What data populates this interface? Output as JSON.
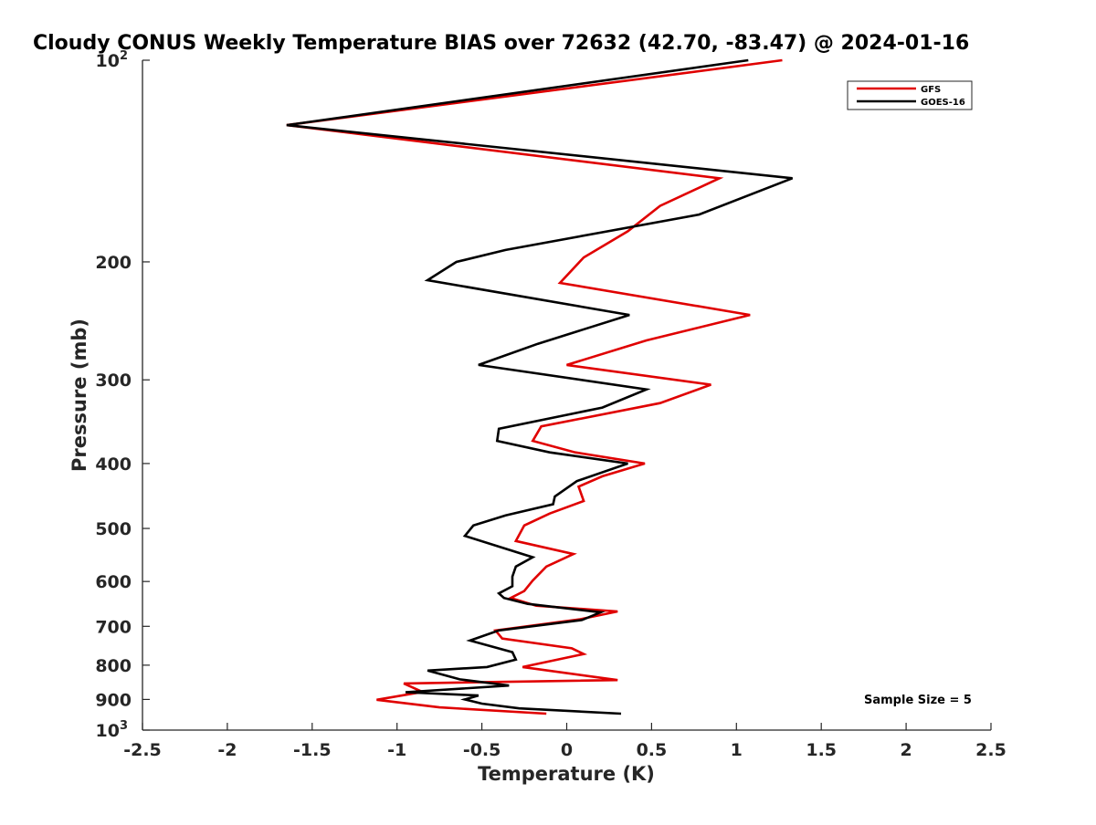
{
  "chart_data": {
    "type": "line",
    "title": "Cloudy CONUS Weekly Temperature BIAS over 72632 (42.70, -83.47) @ 2024-01-16",
    "xlabel": "Temperature (K)",
    "ylabel": "Pressure (mb)",
    "xlim": [
      -2.5,
      2.5
    ],
    "ylim": [
      1000,
      100
    ],
    "y_scale": "log",
    "x_ticks": [
      "-2.5",
      "-2",
      "-1.5",
      "-1",
      "-0.5",
      "0",
      "0.5",
      "1",
      "1.5",
      "2",
      "2.5"
    ],
    "y_ticks": [
      {
        "value": 100,
        "label": "10",
        "sup": "2"
      },
      {
        "value": 200,
        "label": "200",
        "sup": ""
      },
      {
        "value": 300,
        "label": "300",
        "sup": ""
      },
      {
        "value": 400,
        "label": "400",
        "sup": ""
      },
      {
        "value": 500,
        "label": "500",
        "sup": ""
      },
      {
        "value": 600,
        "label": "600",
        "sup": ""
      },
      {
        "value": 700,
        "label": "700",
        "sup": ""
      },
      {
        "value": 800,
        "label": "800",
        "sup": ""
      },
      {
        "value": 900,
        "label": "900",
        "sup": ""
      },
      {
        "value": 1000,
        "label": "10",
        "sup": "3"
      }
    ],
    "grid": false,
    "legend": "top-right",
    "annotation": "Sample Size = 5",
    "series": [
      {
        "name": "GFS",
        "color": "#e00000",
        "points": [
          [
            1.27,
            100
          ],
          [
            -1.65,
            125
          ],
          [
            0.9,
            150
          ],
          [
            0.55,
            165
          ],
          [
            0.36,
            180
          ],
          [
            0.1,
            197
          ],
          [
            -0.04,
            215
          ],
          [
            1.08,
            240
          ],
          [
            0.47,
            262
          ],
          [
            0.0,
            285
          ],
          [
            0.85,
            305
          ],
          [
            0.55,
            325
          ],
          [
            -0.15,
            352
          ],
          [
            -0.2,
            370
          ],
          [
            0.05,
            385
          ],
          [
            0.46,
            400
          ],
          [
            0.21,
            418
          ],
          [
            0.07,
            433
          ],
          [
            0.1,
            455
          ],
          [
            -0.1,
            475
          ],
          [
            -0.25,
            495
          ],
          [
            -0.3,
            522
          ],
          [
            0.04,
            546
          ],
          [
            -0.12,
            570
          ],
          [
            -0.2,
            598
          ],
          [
            -0.25,
            620
          ],
          [
            -0.33,
            635
          ],
          [
            -0.18,
            652
          ],
          [
            0.3,
            665
          ],
          [
            0.08,
            683
          ],
          [
            -0.42,
            710
          ],
          [
            -0.38,
            730
          ],
          [
            0.03,
            755
          ],
          [
            0.1,
            770
          ],
          [
            -0.26,
            805
          ],
          [
            0.3,
            842
          ],
          [
            -0.96,
            852
          ],
          [
            -0.85,
            877
          ],
          [
            -1.12,
            901
          ],
          [
            -0.75,
            925
          ],
          [
            -0.12,
            945
          ]
        ]
      },
      {
        "name": "GOES-16",
        "color": "#000000",
        "points": [
          [
            1.07,
            100
          ],
          [
            -1.65,
            125
          ],
          [
            1.33,
            150
          ],
          [
            0.78,
            170
          ],
          [
            -0.36,
            192
          ],
          [
            -0.65,
            200
          ],
          [
            -0.82,
            213
          ],
          [
            0.37,
            240
          ],
          [
            -0.17,
            265
          ],
          [
            -0.52,
            285
          ],
          [
            0.47,
            310
          ],
          [
            0.21,
            330
          ],
          [
            -0.4,
            355
          ],
          [
            -0.41,
            370
          ],
          [
            -0.1,
            385
          ],
          [
            0.36,
            400
          ],
          [
            0.06,
            425
          ],
          [
            -0.07,
            448
          ],
          [
            -0.08,
            460
          ],
          [
            -0.36,
            478
          ],
          [
            -0.55,
            495
          ],
          [
            -0.6,
            513
          ],
          [
            -0.2,
            552
          ],
          [
            -0.3,
            570
          ],
          [
            -0.32,
            590
          ],
          [
            -0.32,
            610
          ],
          [
            -0.4,
            625
          ],
          [
            -0.37,
            635
          ],
          [
            -0.23,
            648
          ],
          [
            0.2,
            667
          ],
          [
            0.09,
            685
          ],
          [
            -0.4,
            710
          ],
          [
            -0.57,
            735
          ],
          [
            -0.32,
            765
          ],
          [
            -0.3,
            785
          ],
          [
            -0.47,
            805
          ],
          [
            -0.82,
            815
          ],
          [
            -0.63,
            840
          ],
          [
            -0.34,
            858
          ],
          [
            -0.95,
            878
          ],
          [
            -0.52,
            888
          ],
          [
            -0.6,
            900
          ],
          [
            -0.5,
            913
          ],
          [
            -0.28,
            928
          ],
          [
            0.32,
            945
          ]
        ]
      }
    ]
  }
}
